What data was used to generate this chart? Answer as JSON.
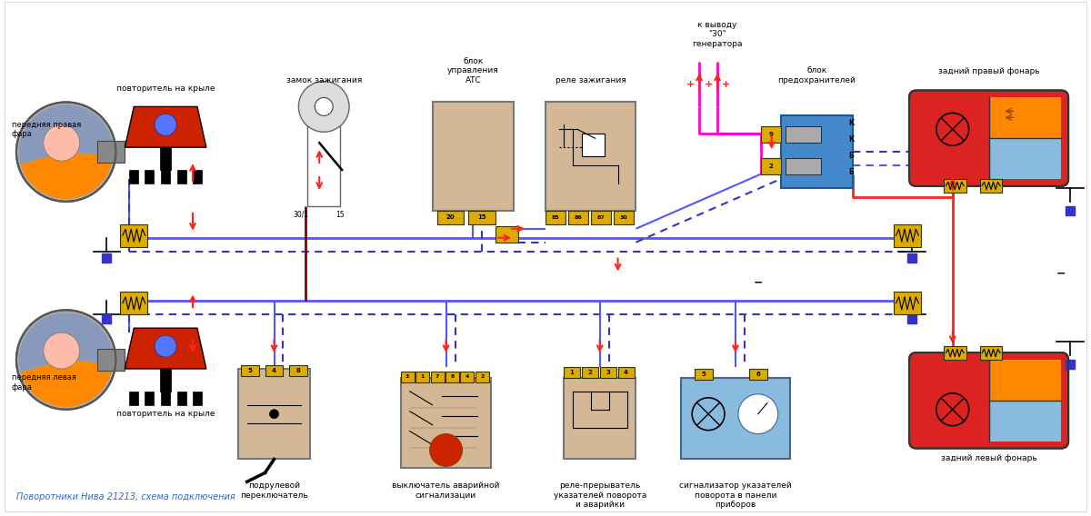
{
  "title": "Поворотники Нива 21213, схема подключения",
  "bg_color": "#ffffff",
  "figsize": [
    12.0,
    5.68
  ],
  "dpi": 100,
  "labels": {
    "front_right_lamp": "передняя правая\nфара",
    "repeater_right": "повторитель на крыле",
    "ignition_lock": "замок зажигания",
    "atc_block": "блок\nуправления\nАТС",
    "ignition_relay": "реле зажигания",
    "to_output30": "к выводу\n\"30\"\nгенератора",
    "fuse_block": "блок\nпредохранителей",
    "rear_right_lamp": "задний правый фонарь",
    "front_left_lamp": "передняя левая\nфара",
    "repeater_left": "повторитель на крыле",
    "steering_switch": "подрулевой\nпереключатель",
    "hazard_switch": "выключатель аварийной\nсигнализации",
    "turn_relay": "реле-прерыватель\nуказателей поворота\nи аварийки",
    "indicator": "сигнализатор указателей\nповорота в панели\nприборов",
    "rear_left_lamp": "задний левый фонарь"
  },
  "colors": {
    "blue_wire": "#5555ff",
    "blue_wire_dark": "#3333cc",
    "red_wire": "#ff2222",
    "dark_red_wire": "#880000",
    "pink_wire": "#ff00cc",
    "black_wire": "#111111",
    "lamp_orange": "#ff8800",
    "lamp_red": "#dd2222",
    "connector_yellow": "#ddaa00",
    "box_beige": "#d4b896",
    "box_blue": "#4488cc",
    "box_light_blue": "#88bbdd",
    "white": "#ffffff",
    "red_body": "#cc2200"
  }
}
